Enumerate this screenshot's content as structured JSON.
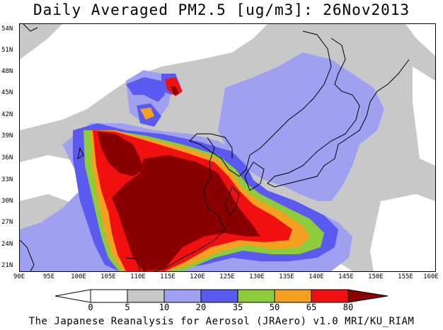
{
  "title": "Daily Averaged PM2.5 [ug/m3]: 26Nov2013",
  "footer": "The Japanese Reanalysis for Aerosol (JRAero) v1.0 MRI/KU_RIAM",
  "axes": {
    "lat_labels": [
      "54N",
      "51N",
      "48N",
      "45N",
      "42N",
      "39N",
      "36N",
      "33N",
      "30N",
      "27N",
      "24N",
      "21N"
    ],
    "lon_labels": [
      "90E",
      "95E",
      "100E",
      "105E",
      "110E",
      "115E",
      "120E",
      "125E",
      "130E",
      "135E",
      "140E",
      "145E",
      "150E",
      "155E",
      "160E"
    ]
  },
  "legend": {
    "levels": [
      "0",
      "5",
      "10",
      "20",
      "35",
      "50",
      "65",
      "80"
    ],
    "colors": [
      "#ffffff",
      "#c8c8c8",
      "#a0a0f0",
      "#5a5af0",
      "#8ccc3c",
      "#f5a020",
      "#f01010",
      "#8a0000"
    ]
  },
  "palette": {
    "gray": "#c8c8c8",
    "light_blue": "#a0a0f0",
    "blue": "#5a5af0",
    "green": "#8ccc3c",
    "orange": "#f5a020",
    "red": "#f01010",
    "dark_red": "#8a0000"
  }
}
